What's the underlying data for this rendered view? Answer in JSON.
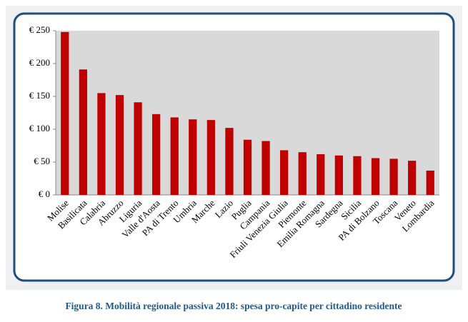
{
  "chart_data": {
    "type": "bar",
    "caption": "Figura 8. Mobilità regionale passiva 2018: spesa pro-capite per cittadino residente",
    "categories": [
      "Molise",
      "Basilicata",
      "Calabria",
      "Abruzzo",
      "Liguria",
      "Valle d'Aosta",
      "PA di Trento",
      "Umbria",
      "Marche",
      "Lazio",
      "Puglia",
      "Campania",
      "Friuli Venezia Giulia",
      "Piemonte",
      "Emilia Romagna",
      "Sardegna",
      "Sicilia",
      "PA di Bolzano",
      "Toscana",
      "Veneto",
      "Lombardia"
    ],
    "values": [
      248,
      191,
      155,
      152,
      141,
      123,
      118,
      115,
      114,
      102,
      84,
      82,
      68,
      65,
      62,
      60,
      59,
      56,
      55,
      52,
      37
    ],
    "color": "#c00000",
    "ylim": [
      0,
      250
    ],
    "yticks": [
      {
        "value": 0,
        "label": "€ 0"
      },
      {
        "value": 50,
        "label": "€ 50"
      },
      {
        "value": 100,
        "label": "€ 100"
      },
      {
        "value": 150,
        "label": "€ 150"
      },
      {
        "value": 200,
        "label": "€ 200"
      },
      {
        "value": 250,
        "label": "€ 250"
      }
    ],
    "grid": false
  }
}
